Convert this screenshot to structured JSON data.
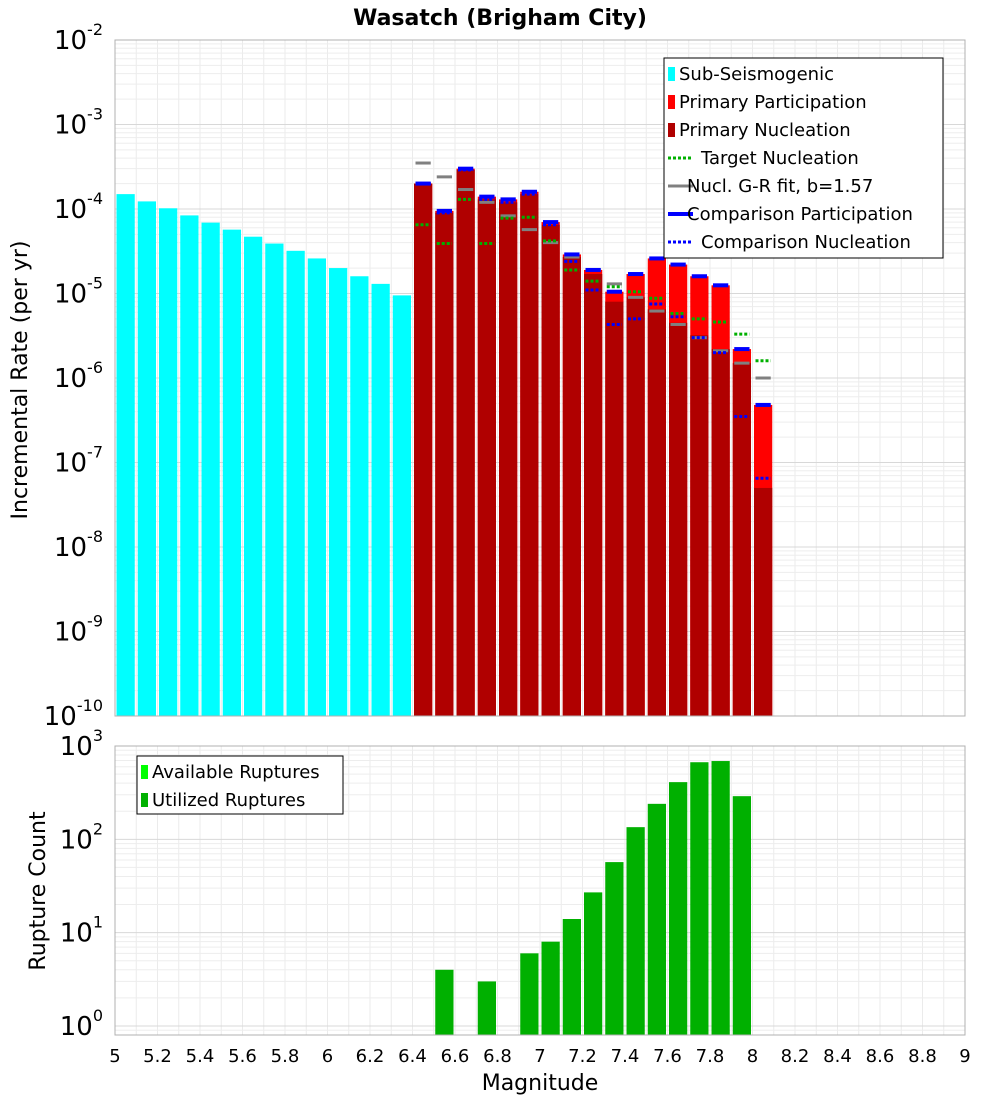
{
  "chart_data": [
    {
      "type": "bar",
      "title": "Wasatch (Brigham City)",
      "xlabel": "",
      "ylabel": "Incremental Rate (per yr)",
      "xlim": [
        5,
        9
      ],
      "yscale": "log",
      "ylim": [
        1e-10,
        0.01
      ],
      "y_tick_exponents": [
        "-10",
        "-9",
        "-8",
        "-7",
        "-6",
        "-5",
        "-4",
        "-3",
        "-2"
      ],
      "y_tick_base": "10",
      "grid": true,
      "legend_position": "top-right",
      "bin_width": 0.1,
      "colors": {
        "sub_seismogenic": "#00ffff",
        "primary_participation": "#ff0000",
        "primary_nucleation": "#b00000",
        "target_nucleation": "#00b000",
        "gr_fit": "#808080",
        "gr_fit_dark": "#202020",
        "comparison_participation": "#0000ff",
        "comparison_nucleation": "#0000ff"
      },
      "legend": [
        {
          "label": "Sub-Seismogenic",
          "key": "sub_seismogenic",
          "style": "bar"
        },
        {
          "label": "Primary Participation",
          "key": "primary_participation",
          "style": "bar"
        },
        {
          "label": "Primary Nucleation",
          "key": "primary_nucleation",
          "style": "bar"
        },
        {
          "label": "Target Nucleation",
          "key": "target_nucleation",
          "style": "dotted"
        },
        {
          "label": "Nucl. G-R fit, b=1.57",
          "key": "gr_fit",
          "style": "solid"
        },
        {
          "label": "Comparison Participation",
          "key": "comparison_participation",
          "style": "solid-thick"
        },
        {
          "label": "Comparison Nucleation",
          "key": "comparison_nucleation",
          "style": "dotted"
        }
      ],
      "series": [
        {
          "name": "Sub-Seismogenic",
          "x": [
            5.05,
            5.15,
            5.25,
            5.35,
            5.45,
            5.55,
            5.65,
            5.75,
            5.85,
            5.95,
            6.05,
            6.15,
            6.25,
            6.35
          ],
          "values": [
            0.00015,
            0.000123,
            0.000102,
            8.4e-05,
            6.9e-05,
            5.7e-05,
            4.7e-05,
            3.9e-05,
            3.2e-05,
            2.6e-05,
            2e-05,
            1.6e-05,
            1.3e-05,
            9.5e-06
          ]
        },
        {
          "name": "Primary Participation",
          "x": [
            6.45,
            6.55,
            6.65,
            6.75,
            6.85,
            6.95,
            7.05,
            7.15,
            7.25,
            7.35,
            7.45,
            7.55,
            7.65,
            7.75,
            7.85,
            7.95,
            8.05
          ],
          "values": [
            0.0002,
            9.5e-05,
            0.0003,
            0.00014,
            0.00013,
            0.00016,
            7e-05,
            2.9e-05,
            1.9e-05,
            1.05e-05,
            1.7e-05,
            2.6e-05,
            2.2e-05,
            1.6e-05,
            1.25e-05,
            2.2e-06,
            4.8e-07
          ]
        },
        {
          "name": "Primary Nucleation",
          "x": [
            6.45,
            6.55,
            6.65,
            6.75,
            6.85,
            6.95,
            7.05,
            7.15,
            7.25,
            7.35,
            7.45,
            7.55,
            7.65,
            7.75,
            7.85,
            7.95,
            8.05
          ],
          "values": [
            0.0002,
            9e-05,
            0.00029,
            0.00013,
            0.00012,
            0.00015,
            6.5e-05,
            2.7e-05,
            1.7e-05,
            8e-06,
            9e-06,
            6.5e-06,
            4.5e-06,
            3.2e-06,
            2.2e-06,
            1.5e-06,
            5e-08
          ]
        },
        {
          "name": "Target Nucleation",
          "x": [
            6.45,
            6.55,
            6.65,
            6.75,
            6.85,
            6.95,
            7.05,
            7.15,
            7.25,
            7.35,
            7.45,
            7.55,
            7.65,
            7.75,
            7.85,
            7.95,
            8.05
          ],
          "values": [
            6.5e-05,
            3.9e-05,
            0.00013,
            3.9e-05,
            7.8e-05,
            8e-05,
            4.2e-05,
            1.9e-05,
            1.4e-05,
            1.2e-05,
            1.05e-05,
            8.8e-06,
            5.8e-06,
            5e-06,
            4.6e-06,
            3.3e-06,
            1.6e-06
          ]
        },
        {
          "name": "Nucl. G-R fit, b=1.57",
          "x": [
            6.45,
            6.55,
            6.65,
            6.75,
            6.85,
            6.95,
            7.05,
            7.15,
            7.25,
            7.35,
            7.45,
            7.55,
            7.65,
            7.75,
            7.85,
            7.95,
            8.05
          ],
          "values": [
            0.00035,
            0.00024,
            0.00017,
            0.00012,
            8.3e-05,
            5.7e-05,
            4e-05,
            2.7e-05,
            1.9e-05,
            1.3e-05,
            9e-06,
            6.2e-06,
            4.3e-06,
            3e-06,
            2.1e-06,
            1.5e-06,
            1e-06
          ]
        },
        {
          "name": "Comparison Participation",
          "x": [
            6.45,
            6.55,
            6.65,
            6.75,
            6.85,
            6.95,
            7.05,
            7.15,
            7.25,
            7.35,
            7.45,
            7.55,
            7.65,
            7.75,
            7.85,
            7.95,
            8.05
          ],
          "values": [
            0.0002,
            9.5e-05,
            0.0003,
            0.00014,
            0.00013,
            0.00016,
            7e-05,
            2.9e-05,
            1.9e-05,
            1.05e-05,
            1.7e-05,
            2.6e-05,
            2.2e-05,
            1.6e-05,
            1.25e-05,
            2.2e-06,
            4.8e-07
          ]
        },
        {
          "name": "Comparison Nucleation",
          "x": [
            6.45,
            6.55,
            6.65,
            6.75,
            6.85,
            6.95,
            7.05,
            7.15,
            7.25,
            7.35,
            7.45,
            7.55,
            7.65,
            7.75,
            7.85,
            7.95,
            8.05
          ],
          "values": [
            0.0002,
            9e-05,
            0.00029,
            0.00013,
            0.00012,
            0.00015,
            6.5e-05,
            2.4e-05,
            1.1e-05,
            4.3e-06,
            5e-06,
            7.5e-06,
            5.3e-06,
            3e-06,
            2e-06,
            3.5e-07,
            6.5e-08
          ]
        }
      ]
    },
    {
      "type": "bar",
      "title": "",
      "xlabel": "Magnitude",
      "ylabel": "Rupture Count",
      "xlim": [
        5,
        9
      ],
      "x_ticks": [
        "5",
        "5.2",
        "5.4",
        "5.6",
        "5.8",
        "6",
        "6.2",
        "6.4",
        "6.6",
        "6.8",
        "7",
        "7.2",
        "7.4",
        "7.6",
        "7.8",
        "8",
        "8.2",
        "8.4",
        "8.6",
        "8.8",
        "9"
      ],
      "yscale": "log",
      "ylim": [
        0.8,
        1000
      ],
      "y_tick_exponents": [
        "0",
        "1",
        "2",
        "3"
      ],
      "y_tick_base": "10",
      "grid": true,
      "legend_position": "top-left",
      "bin_width": 0.1,
      "colors": {
        "available": "#00ff00",
        "utilized": "#00b000"
      },
      "legend": [
        {
          "label": "Available Ruptures",
          "key": "available",
          "style": "bar"
        },
        {
          "label": "Utilized Ruptures",
          "key": "utilized",
          "style": "bar"
        }
      ],
      "series": [
        {
          "name": "Utilized Ruptures",
          "x": [
            6.55,
            6.75,
            6.95,
            7.05,
            7.15,
            7.25,
            7.35,
            7.45,
            7.55,
            7.65,
            7.75,
            7.85,
            7.95
          ],
          "values": [
            4,
            3,
            6,
            8,
            14,
            27,
            57,
            135,
            240,
            410,
            670,
            690,
            290
          ]
        }
      ]
    }
  ]
}
